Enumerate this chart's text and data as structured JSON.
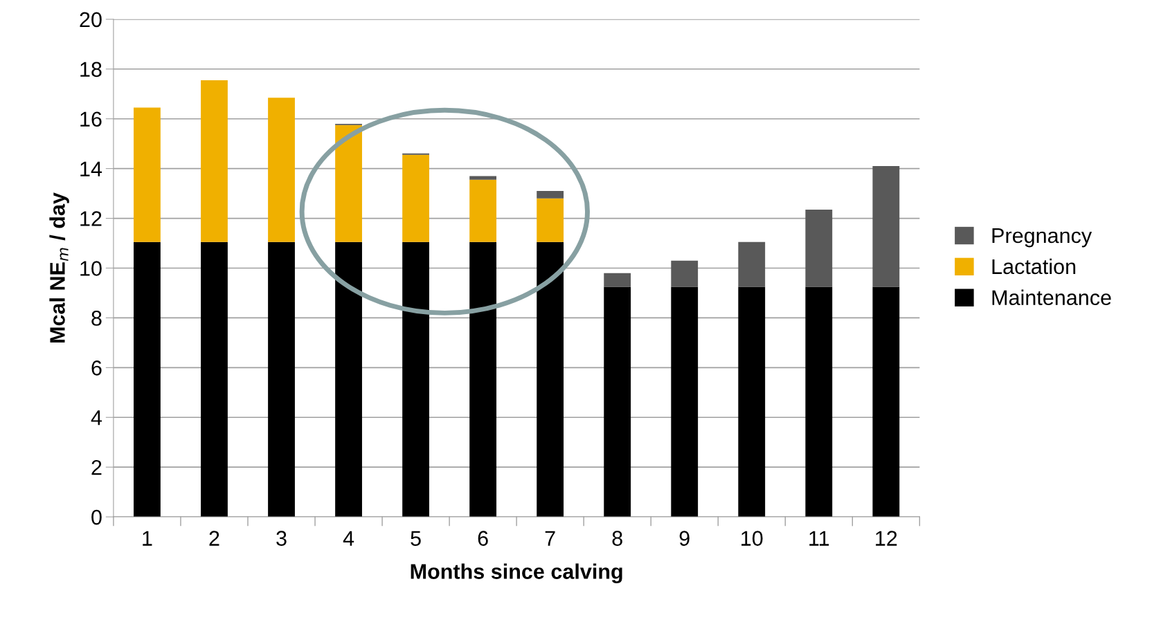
{
  "chart_data": {
    "type": "bar",
    "stacked": true,
    "xlabel": "Months since calving",
    "ylabel": "Mcal NE$_{m}$ / day",
    "categories": [
      "1",
      "2",
      "3",
      "4",
      "5",
      "6",
      "7",
      "8",
      "9",
      "10",
      "11",
      "12"
    ],
    "series": [
      {
        "name": "Maintenance",
        "color": "#000000",
        "values": [
          11.05,
          11.05,
          11.05,
          11.05,
          11.05,
          11.05,
          11.05,
          9.25,
          9.25,
          9.25,
          9.25,
          9.25
        ]
      },
      {
        "name": "Lactation",
        "color": "#f0b000",
        "values": [
          5.4,
          6.5,
          5.8,
          4.7,
          3.5,
          2.5,
          1.75,
          null,
          null,
          null,
          null,
          null
        ]
      },
      {
        "name": "Pregnancy",
        "color": "#595959",
        "values": [
          null,
          null,
          null,
          0.05,
          0.06,
          0.15,
          0.3,
          0.55,
          1.05,
          1.8,
          3.1,
          4.85
        ]
      }
    ],
    "ylim": [
      0,
      20
    ],
    "yticks": [
      0,
      2,
      4,
      6,
      8,
      10,
      12,
      14,
      16,
      18,
      20
    ],
    "grid": "y",
    "legend": "right"
  }
}
